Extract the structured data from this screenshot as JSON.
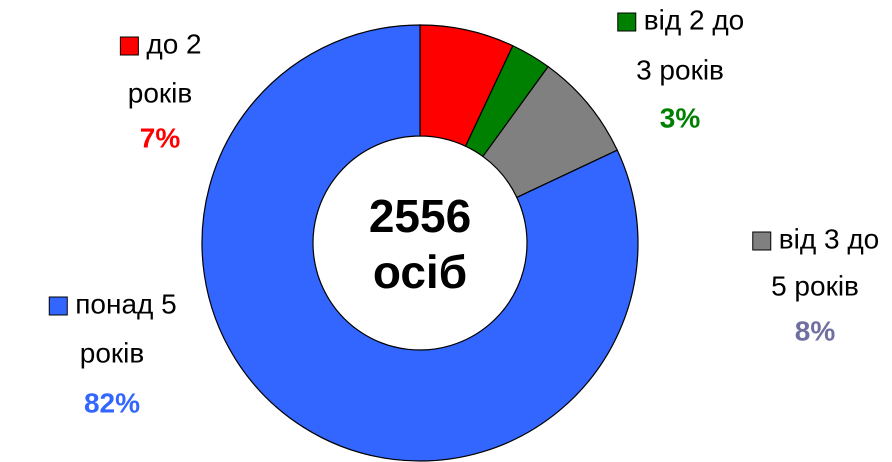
{
  "chart_data": {
    "type": "donut",
    "center_text": [
      "2556",
      "осіб"
    ],
    "categories": [
      [
        "до 2",
        "років"
      ],
      [
        "від 2 до",
        "3 років"
      ],
      [
        "від 3 до",
        "5 років"
      ],
      [
        "понад 5",
        "років"
      ]
    ],
    "values": [
      7,
      3,
      8,
      82
    ],
    "value_labels": [
      "7%",
      "3%",
      "8%",
      "82%"
    ],
    "colors": [
      "#ff0000",
      "#008000",
      "#808080",
      "#3366ff"
    ],
    "label_colors": [
      "#ff0000",
      "#008000",
      "#7070a0",
      "#3366ff"
    ]
  }
}
